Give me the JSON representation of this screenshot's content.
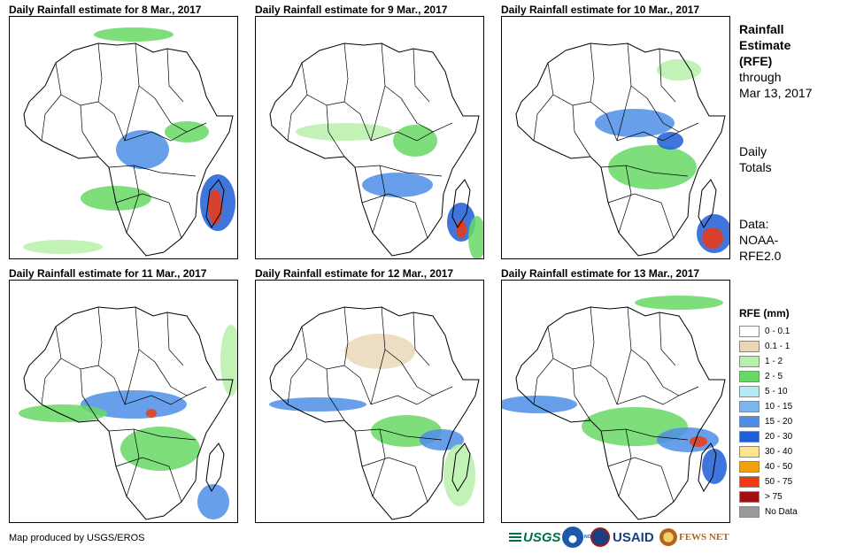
{
  "panels": [
    {
      "title": "Daily Rainfall estimate for 8 Mar., 2017",
      "rain_level": "heavy-south-east"
    },
    {
      "title": "Daily Rainfall estimate for 9 Mar., 2017",
      "rain_level": "moderate-south-east"
    },
    {
      "title": "Daily Rainfall estimate for 10 Mar., 2017",
      "rain_level": "moderate-east"
    },
    {
      "title": "Daily Rainfall estimate for 11 Mar., 2017",
      "rain_level": "moderate-west"
    },
    {
      "title": "Daily Rainfall estimate for 12 Mar., 2017",
      "rain_level": "light"
    },
    {
      "title": "Daily Rainfall estimate for 13 Mar., 2017",
      "rain_level": "moderate-east"
    }
  ],
  "side": {
    "title_line1": "Rainfall",
    "title_line2": "Estimate",
    "title_line3": "(RFE)",
    "through": "through",
    "date": "Mar 13, 2017",
    "daily1": "Daily",
    "daily2": "Totals",
    "data1": "Data:",
    "data2": "NOAA-",
    "data3": "RFE2.0"
  },
  "legend": {
    "title": "RFE (mm)",
    "items": [
      {
        "label": "0 - 0.1",
        "color": "#ffffff"
      },
      {
        "label": "0.1 - 1",
        "color": "#e9d7b8"
      },
      {
        "label": "1 - 2",
        "color": "#b7f0a8"
      },
      {
        "label": "2 - 5",
        "color": "#68d865"
      },
      {
        "label": "5 - 10",
        "color": "#b4ecf5"
      },
      {
        "label": "10 - 15",
        "color": "#7fb5ee"
      },
      {
        "label": "15 - 20",
        "color": "#4d8ee6"
      },
      {
        "label": "20 - 30",
        "color": "#1f5ed6"
      },
      {
        "label": "30 - 40",
        "color": "#fde68a"
      },
      {
        "label": "40 - 50",
        "color": "#f3a20c"
      },
      {
        "label": "50 - 75",
        "color": "#ee3a10"
      },
      {
        "label": "> 75",
        "color": "#a01010"
      },
      {
        "label": "No Data",
        "color": "#999999"
      }
    ]
  },
  "footer": {
    "credit": "Map produced by USGS/EROS",
    "logos": [
      "USGS",
      "NOAA",
      "USAID",
      "FEWS NET"
    ]
  }
}
